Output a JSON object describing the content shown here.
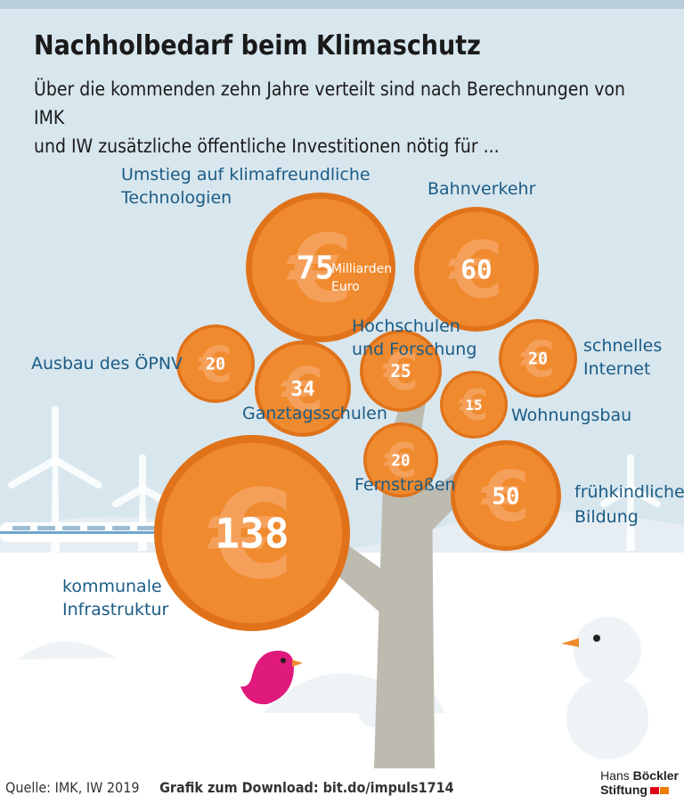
{
  "title": "Nachholbedarf beim Klimaschutz",
  "subtitle": {
    "line1": "Über die kommenden zehn Jahre verteilt sind nach Berechnungen von IMK",
    "line2": "und IW zusätzliche öffentliche Investitionen nötig für ..."
  },
  "footer": {
    "source": "Quelle: IMK, IW 2019",
    "download": "Grafik zum Download: bit.do/impuls1714"
  },
  "logo": {
    "line1_a": "Hans ",
    "line1_b": "Böckler",
    "line2": "Stiftung"
  },
  "unit_label": {
    "line1": "Milliarden",
    "line2": "Euro"
  },
  "chart_data": {
    "type": "bubble",
    "unit": "Milliarden Euro",
    "items": [
      {
        "label": [
          "Umstieg auf klimafreundliche",
          "Technologien"
        ],
        "value": 75
      },
      {
        "label": [
          "Bahnverkehr"
        ],
        "value": 60
      },
      {
        "label": [
          "Ausbau des ÖPNV"
        ],
        "value": 20
      },
      {
        "label": [
          "Ganztagsschulen"
        ],
        "value": 34
      },
      {
        "label": [
          "Hochschulen",
          "und Forschung"
        ],
        "value": 25
      },
      {
        "label": [
          "schnelles",
          "Internet"
        ],
        "value": 20
      },
      {
        "label": [
          "Wohnungsbau"
        ],
        "value": 15
      },
      {
        "label": [
          "Fernstraßen"
        ],
        "value": 20
      },
      {
        "label": [
          "frühkindliche",
          "Bildung"
        ],
        "value": 50
      },
      {
        "label": [
          "kommunale",
          "Infrastruktur"
        ],
        "value": 138
      }
    ]
  },
  "colors": {
    "sky": "#d8e6ee",
    "coin": "#f08a2e",
    "coin_rim": "#e0731a",
    "coin_symbol": "#f5a05a",
    "label_text": "#1b5c86",
    "trunk": "#bdbab0",
    "bird": "#e0197d",
    "beak": "#f08a2e"
  }
}
